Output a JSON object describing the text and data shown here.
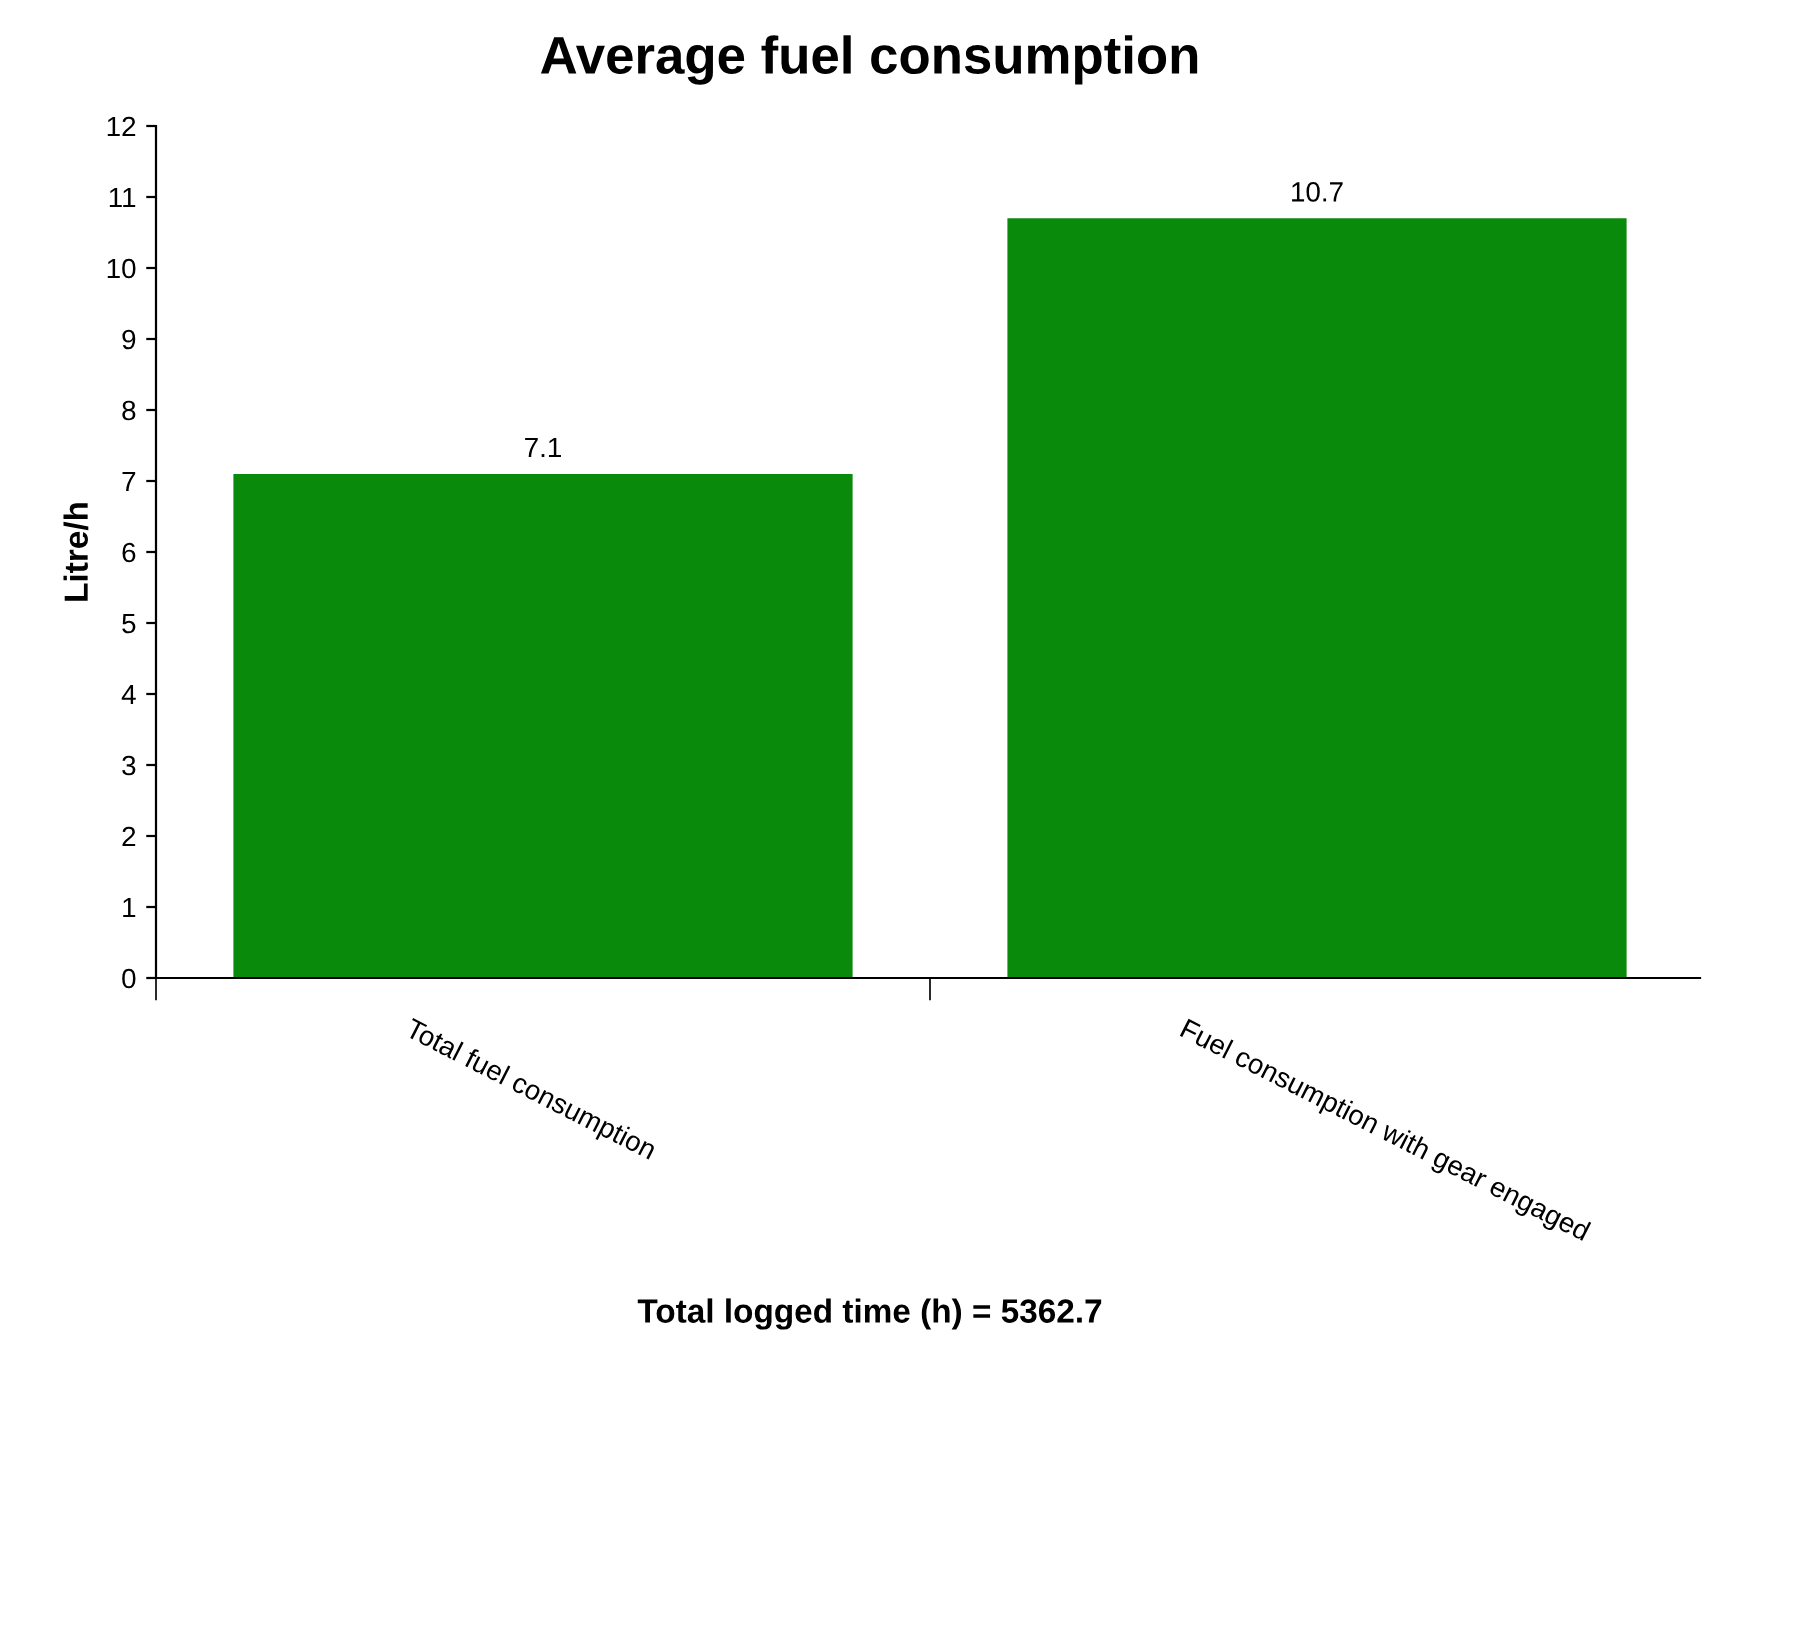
{
  "chart_data": {
    "type": "bar",
    "title": "Average fuel consumption",
    "ylabel": "Litre/h",
    "categories": [
      "Total fuel consumption",
      "Fuel consumption with gear engaged"
    ],
    "values": [
      7.1,
      10.7
    ],
    "color": "#0a8a0a",
    "ylim": [
      0,
      12
    ],
    "yticks": [
      0,
      1,
      2,
      3,
      4,
      5,
      6,
      7,
      8,
      9,
      10,
      11,
      12
    ],
    "data_labels": true,
    "grid": false,
    "legend": false,
    "annotations": [
      "Total logged time (h) = 5362.7"
    ]
  }
}
